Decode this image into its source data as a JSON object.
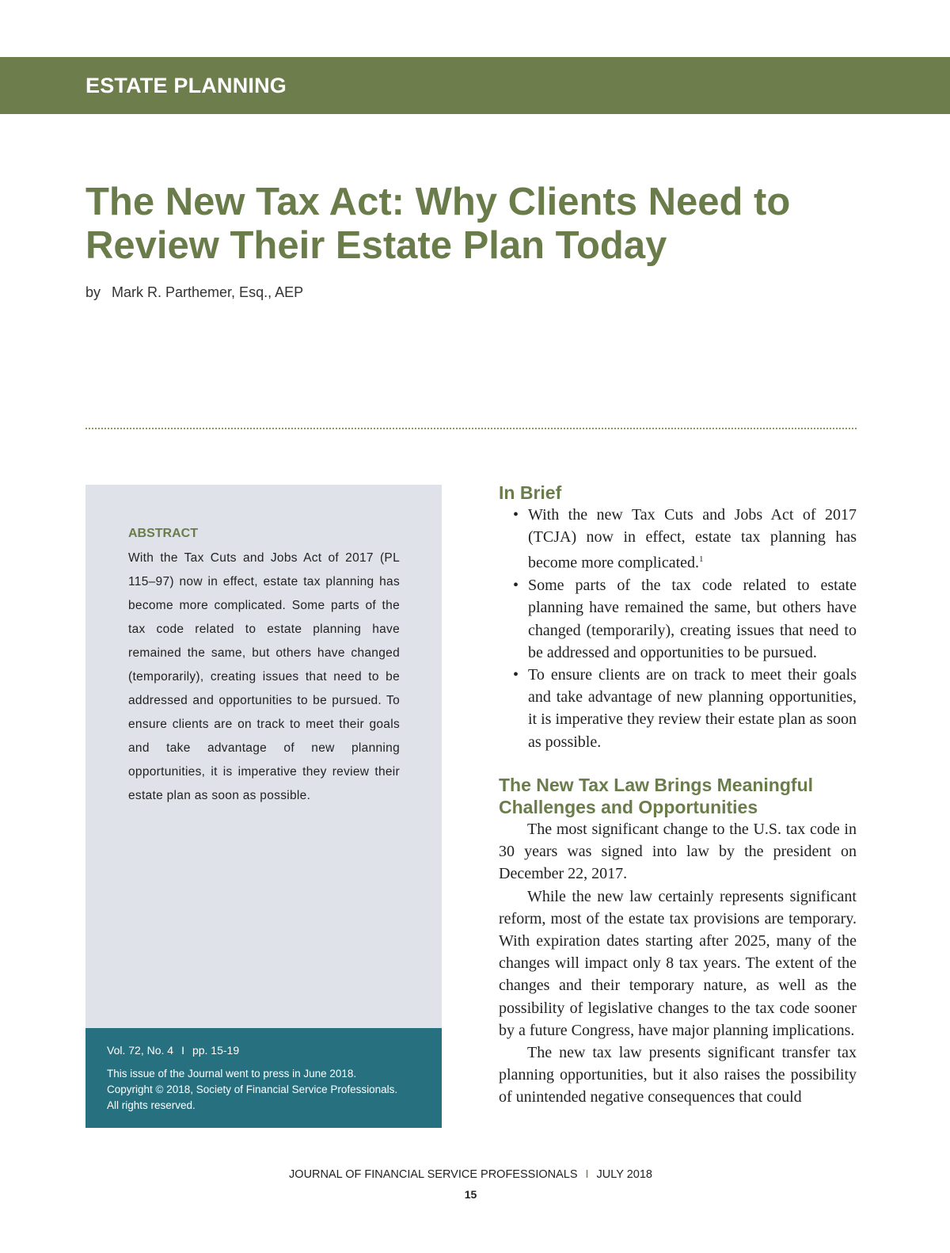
{
  "section_label": "ESTATE PLANNING",
  "title": "The New Tax Act: Why Clients Need to Review Their Estate Plan Today",
  "byline": {
    "by": "by",
    "author": "Mark R. Parthemer, Esq., AEP"
  },
  "abstract": {
    "heading": "ABSTRACT",
    "text": "With the Tax Cuts and Jobs Act of 2017 (PL 115–97) now in effect, estate tax planning has become more complicated. Some parts of the tax code related to estate planning have remained the same, but others have changed (temporarily), creating issues that need to be addressed and opportunities to be pursued. To ensure clients are on track to meet their goals and take advantage of new planning opportunities, it is imperative they review their estate plan as soon as possible."
  },
  "info": {
    "volume": "Vol. 72, No. 4",
    "separator": "I",
    "pages": "pp. 15-19",
    "press": "This issue of the Journal went to press in June 2018.",
    "copyright": "Copyright © 2018, Society of Financial Service Professionals.",
    "rights": "All rights reserved."
  },
  "in_brief": {
    "heading": "In Brief",
    "items": [
      "With the new Tax Cuts and Jobs Act of 2017 (TCJA) now in effect, estate tax planning has become more complicated.",
      "Some parts of the tax code related to estate planning have remained the same, but others have changed (temporarily), creating issues that need to be addressed and opportunities to be pursued.",
      "To ensure clients are on track to meet their goals and take advantage of new planning opportunities, it is imperative they review their estate plan as soon as possible."
    ],
    "footnote_ref": "1"
  },
  "section": {
    "heading": "The New Tax Law Brings Meaningful Challenges and Opportunities",
    "paragraphs": [
      "The most significant change to the U.S. tax code in 30 years was signed into law by the president on December 22, 2017.",
      "While the new law certainly represents significant reform, most of the estate tax provisions are temporary. With expiration dates starting after 2025, many of the changes will impact only 8 tax years. The extent of the changes and their temporary nature, as well as the possibility of legislative changes to the tax code sooner by a future Congress, have major planning implications.",
      "The new tax law presents significant transfer tax planning opportunities, but it also raises the possibility of unintended negative consequences that could"
    ]
  },
  "footer": {
    "journal": "JOURNAL OF FINANCIAL SERVICE PROFESSIONALS",
    "separator": "I",
    "date": "JULY 2018",
    "page": "15"
  },
  "colors": {
    "accent": "#6e7d4c",
    "abstract_bg": "#dfe2e8",
    "info_bg": "#27707f"
  }
}
